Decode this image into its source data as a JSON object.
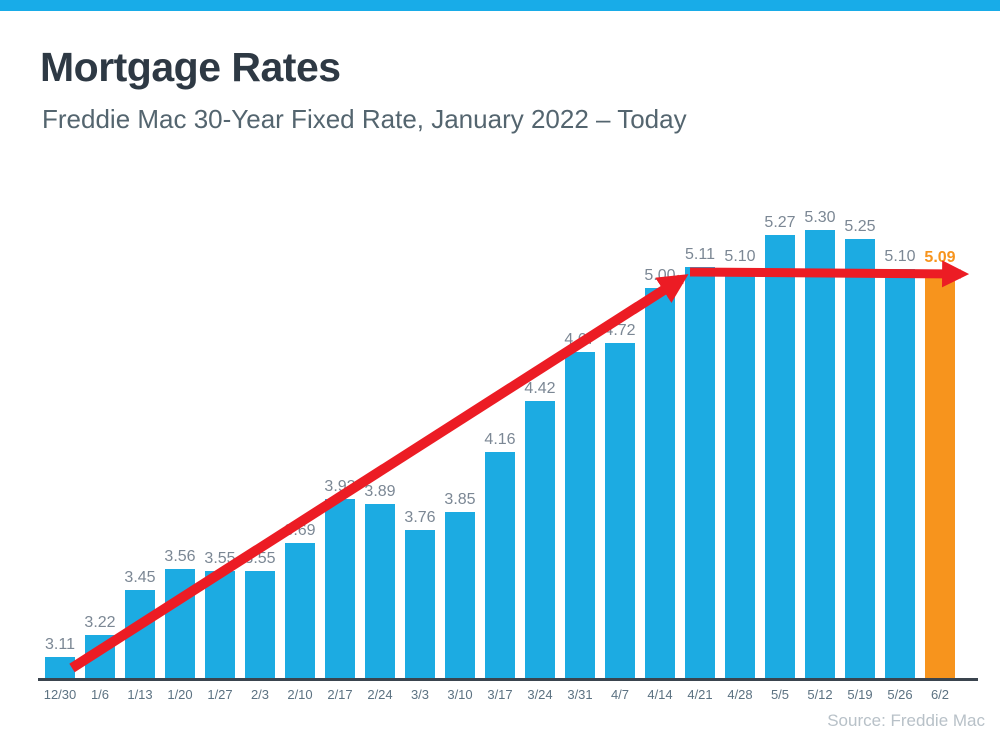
{
  "page": {
    "top_strip_color": "#18ACE8"
  },
  "header": {
    "title": "Mortgage Rates",
    "subtitle": "Freddie Mac 30-Year Fixed Rate, January 2022 – Today"
  },
  "chart_data": {
    "type": "bar",
    "title": "Mortgage Rates",
    "subtitle": "Freddie Mac 30-Year Fixed Rate, January 2022 – Today",
    "categories": [
      "12/30",
      "1/6",
      "1/13",
      "1/20",
      "1/27",
      "2/3",
      "2/10",
      "2/17",
      "2/24",
      "3/3",
      "3/10",
      "3/17",
      "3/24",
      "3/31",
      "4/7",
      "4/14",
      "4/21",
      "4/28",
      "5/5",
      "5/12",
      "5/19",
      "5/26",
      "6/2"
    ],
    "values": [
      3.11,
      3.22,
      3.45,
      3.56,
      3.55,
      3.55,
      3.69,
      3.92,
      3.89,
      3.76,
      3.85,
      4.16,
      4.42,
      4.67,
      4.72,
      5.0,
      5.11,
      5.1,
      5.27,
      5.3,
      5.25,
      5.1,
      5.09
    ],
    "value_labels": [
      "3.11",
      "3.22",
      "3.45",
      "3.56",
      "3.55",
      "3.55",
      "3.69",
      "3.92",
      "3.89",
      "3.76",
      "3.85",
      "4.16",
      "4.42",
      "4.67",
      "4.72",
      "5.00",
      "5.11",
      "5.10",
      "5.27",
      "5.30",
      "5.25",
      "5.10",
      "5.09"
    ],
    "highlight_index": 22,
    "bar_color": "#1CABE2",
    "highlight_color": "#F7941D",
    "label_color": "#7B8794",
    "highlight_label_color": "#F7941D",
    "tick_label_color": "#5C7282",
    "axis_color": "#3A444E",
    "ylim": [
      3.0,
      5.45
    ],
    "grid": false,
    "legend": null,
    "annotations": {
      "trend_arrow": {
        "color": "#EC1C24",
        "description": "Red arrow rising from the 12/30 bar to the 4/21 bar, then continuing flat to the right edge over the 6/2 bar"
      }
    },
    "xlabel": "",
    "ylabel": ""
  },
  "footer": {
    "source": "Source: Freddie Mac"
  }
}
